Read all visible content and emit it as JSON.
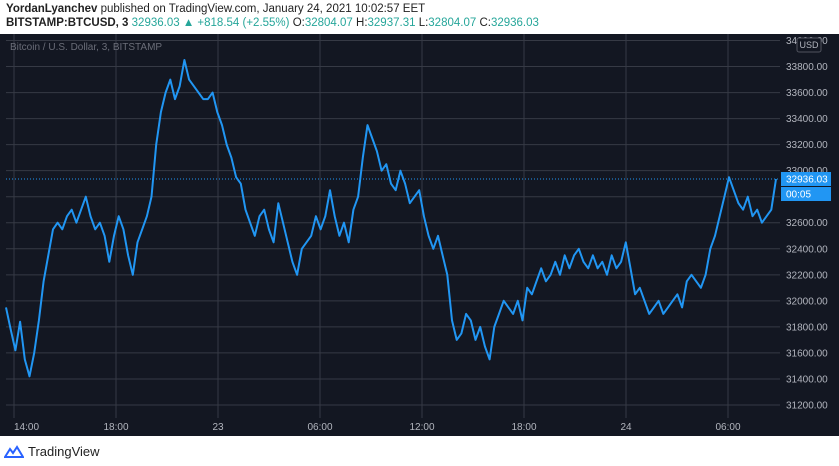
{
  "header": {
    "author": "YordanLyanchev",
    "published_text": "published on TradingView.com, January 24, 2021 10:02:57 EET",
    "symbol": "BITSTAMP:BTCUSD, 3",
    "last_price": "32936.03",
    "change": "+818.54 (+2.55%)",
    "o_label": "O:",
    "o_value": "32804.07",
    "h_label": "H:",
    "h_value": "32937.31",
    "l_label": "L:",
    "l_value": "32804.07",
    "c_label": "C:",
    "c_value": "32936.03"
  },
  "chart_title": "Bitcoin / U.S. Dollar, 3, BITSTAMP",
  "currency_button": "USD",
  "price_badge": "32936.03",
  "countdown_badge": "00:05",
  "footer_brand": "TradingView",
  "colors": {
    "background": "#131722",
    "grid": "#363a45",
    "line": "#2196f3",
    "badge": "#2196f3",
    "axis_text": "#b2b5be",
    "up": "#26a69a"
  },
  "chart_data": {
    "type": "line",
    "title": "Bitcoin / U.S. Dollar, 3, BITSTAMP",
    "xlabel": "",
    "ylabel": "",
    "ylim": [
      31100,
      34050
    ],
    "y_ticks": [
      "34000.00",
      "33800.00",
      "33600.00",
      "33400.00",
      "33200.00",
      "33000.00",
      "32800.00",
      "32600.00",
      "32400.00",
      "32200.00",
      "32000.00",
      "31800.00",
      "31600.00",
      "31400.00",
      "31200.00"
    ],
    "x_ticks": [
      "14:00",
      "18:00",
      "23",
      "06:00",
      "12:00",
      "18:00",
      "24",
      "06:00"
    ],
    "grid": true,
    "series": [
      {
        "values": [
          31950,
          31780,
          31620,
          31840,
          31550,
          31420,
          31600,
          31850,
          32150,
          32350,
          32550,
          32600,
          32550,
          32650,
          32700,
          32600,
          32700,
          32800,
          32650,
          32550,
          32600,
          32500,
          32300,
          32500,
          32650,
          32550,
          32350,
          32200,
          32450,
          32550,
          32650,
          32800,
          33200,
          33450,
          33600,
          33700,
          33550,
          33650,
          33850,
          33700,
          33650,
          33600,
          33550,
          33550,
          33600,
          33450,
          33350,
          33200,
          33100,
          32950,
          32900,
          32700,
          32600,
          32500,
          32650,
          32700,
          32550,
          32450,
          32750,
          32600,
          32450,
          32300,
          32200,
          32400,
          32450,
          32500,
          32650,
          32550,
          32650,
          32850,
          32650,
          32500,
          32600,
          32450,
          32700,
          32800,
          33100,
          33350,
          33250,
          33150,
          33000,
          33050,
          32900,
          32850,
          33000,
          32900,
          32750,
          32800,
          32850,
          32650,
          32500,
          32400,
          32500,
          32350,
          32200,
          31850,
          31700,
          31750,
          31900,
          31850,
          31700,
          31800,
          31650,
          31550,
          31800,
          31900,
          32000,
          31950,
          31900,
          32000,
          31850,
          32100,
          32050,
          32150,
          32250,
          32150,
          32200,
          32300,
          32200,
          32350,
          32250,
          32350,
          32400,
          32300,
          32250,
          32350,
          32250,
          32300,
          32200,
          32350,
          32250,
          32300,
          32450,
          32250,
          32050,
          32100,
          32000,
          31900,
          31950,
          32000,
          31900,
          31950,
          32000,
          32050,
          31950,
          32150,
          32200,
          32150,
          32100,
          32200,
          32400,
          32500,
          32650,
          32800,
          32950,
          32850,
          32750,
          32700,
          32800,
          32650,
          32700,
          32600,
          32650,
          32700,
          32936.03
        ]
      }
    ]
  }
}
